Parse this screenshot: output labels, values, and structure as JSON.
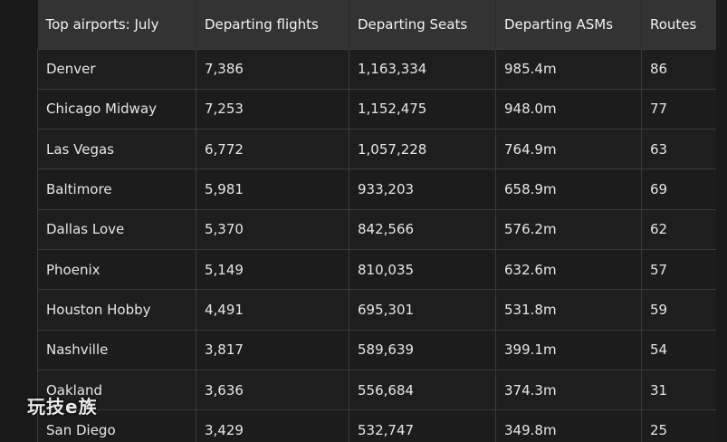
{
  "table": {
    "headers": [
      "Top airports: July",
      "Departing flights",
      "Departing Seats",
      "Departing ASMs",
      "Routes"
    ],
    "rows": [
      [
        "Denver",
        "7,386",
        "1,163,334",
        "985.4m",
        "86"
      ],
      [
        "Chicago Midway",
        "7,253",
        "1,152,475",
        "948.0m",
        "77"
      ],
      [
        "Las Vegas",
        "6,772",
        "1,057,228",
        "764.9m",
        "63"
      ],
      [
        "Baltimore",
        "5,981",
        "933,203",
        "658.9m",
        "69"
      ],
      [
        "Dallas Love",
        "5,370",
        "842,566",
        "576.2m",
        "62"
      ],
      [
        "Phoenix",
        "5,149",
        "810,035",
        "632.6m",
        "57"
      ],
      [
        "Houston Hobby",
        "4,491",
        "695,301",
        "531.8m",
        "59"
      ],
      [
        "Nashville",
        "3,817",
        "589,639",
        "399.1m",
        "54"
      ],
      [
        "Oakland",
        "3,636",
        "556,684",
        "374.3m",
        "31"
      ],
      [
        "San Diego",
        "3,429",
        "532,747",
        "349.8m",
        "25"
      ]
    ]
  },
  "watermark": {
    "text": "玩技e族"
  },
  "colors": {
    "background": "#1a1a1a",
    "header_bg": "#333333",
    "cell_border": "#3a3a3a",
    "text": "#e6e6e6"
  }
}
